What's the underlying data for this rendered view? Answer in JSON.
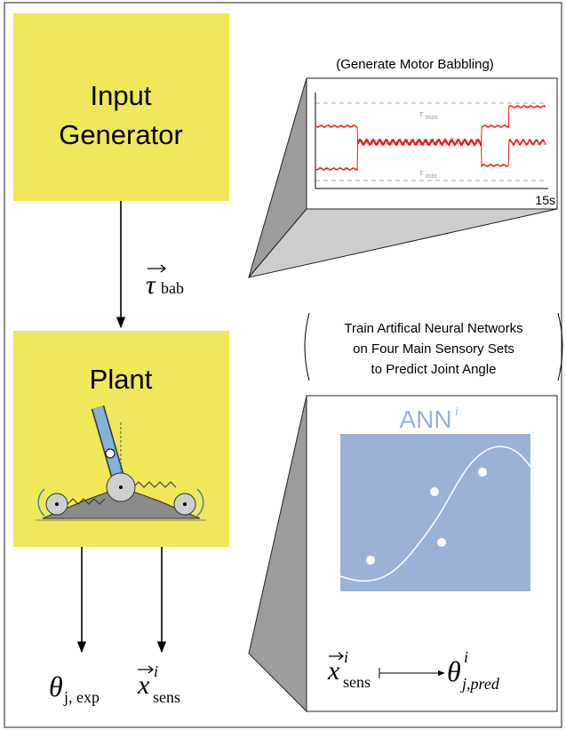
{
  "input_generator": {
    "title_lines": [
      "Input",
      "Generator"
    ]
  },
  "babbling_panel": {
    "caption": "(Generate Motor Babbling)",
    "tau_max": {
      "symbol": "τ",
      "subscript": "max"
    },
    "tau_min": {
      "symbol": "τ",
      "subscript": "min"
    },
    "duration_label": "15s"
  },
  "arrow_label": {
    "symbol": "τ",
    "subscript": "bab"
  },
  "plant": {
    "title": "Plant"
  },
  "ann_panel": {
    "caption_lines": [
      "Train Artifical Neural Networks",
      "on Four Main Sensory Sets",
      "to Predict Joint Angle"
    ],
    "title": "ANN",
    "title_superscript": "i",
    "mapping_input": {
      "symbol": "x",
      "superscript": "i",
      "subscript": "sens"
    },
    "mapping_output": {
      "symbol": "θ",
      "superscript": "i",
      "subscript": "j,pred"
    }
  },
  "outputs": [
    {
      "symbol": "θ",
      "subscript": "j, exp"
    },
    {
      "symbol": "x",
      "superscript": "i",
      "subscript": "sens"
    }
  ]
}
